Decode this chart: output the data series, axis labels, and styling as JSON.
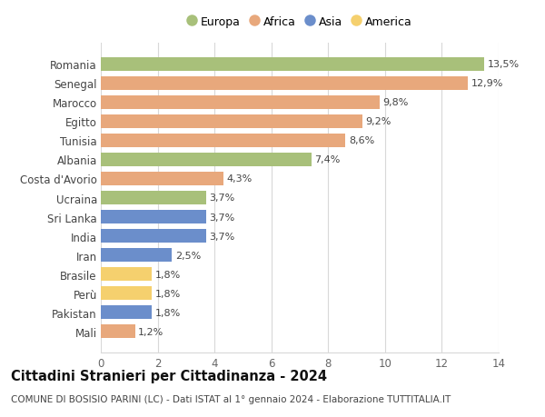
{
  "countries": [
    "Mali",
    "Pakistan",
    "Perù",
    "Brasile",
    "Iran",
    "India",
    "Sri Lanka",
    "Ucraina",
    "Costa d'Avorio",
    "Albania",
    "Tunisia",
    "Egitto",
    "Marocco",
    "Senegal",
    "Romania"
  ],
  "values": [
    1.2,
    1.8,
    1.8,
    1.8,
    2.5,
    3.7,
    3.7,
    3.7,
    4.3,
    7.4,
    8.6,
    9.2,
    9.8,
    12.9,
    13.5
  ],
  "labels": [
    "1,2%",
    "1,8%",
    "1,8%",
    "1,8%",
    "2,5%",
    "3,7%",
    "3,7%",
    "3,7%",
    "4,3%",
    "7,4%",
    "8,6%",
    "9,2%",
    "9,8%",
    "12,9%",
    "13,5%"
  ],
  "continents": [
    "Africa",
    "Asia",
    "America",
    "America",
    "Asia",
    "Asia",
    "Asia",
    "Europa",
    "Africa",
    "Europa",
    "Africa",
    "Africa",
    "Africa",
    "Africa",
    "Europa"
  ],
  "continent_colors": {
    "Europa": "#a8c07a",
    "Africa": "#e8a87c",
    "Asia": "#6b8ecb",
    "America": "#f5d06e"
  },
  "legend_order": [
    "Europa",
    "Africa",
    "Asia",
    "America"
  ],
  "title": "Cittadini Stranieri per Cittadinanza - 2024",
  "subtitle": "COMUNE DI BOSISIO PARINI (LC) - Dati ISTAT al 1° gennaio 2024 - Elaborazione TUTTITALIA.IT",
  "xlim": [
    0,
    14
  ],
  "xticks": [
    0,
    2,
    4,
    6,
    8,
    10,
    12,
    14
  ],
  "background_color": "#ffffff",
  "grid_color": "#d8d8d8",
  "bar_height": 0.72,
  "title_fontsize": 10.5,
  "subtitle_fontsize": 7.5,
  "tick_label_fontsize": 8.5,
  "value_label_fontsize": 8.0,
  "legend_fontsize": 9.0
}
